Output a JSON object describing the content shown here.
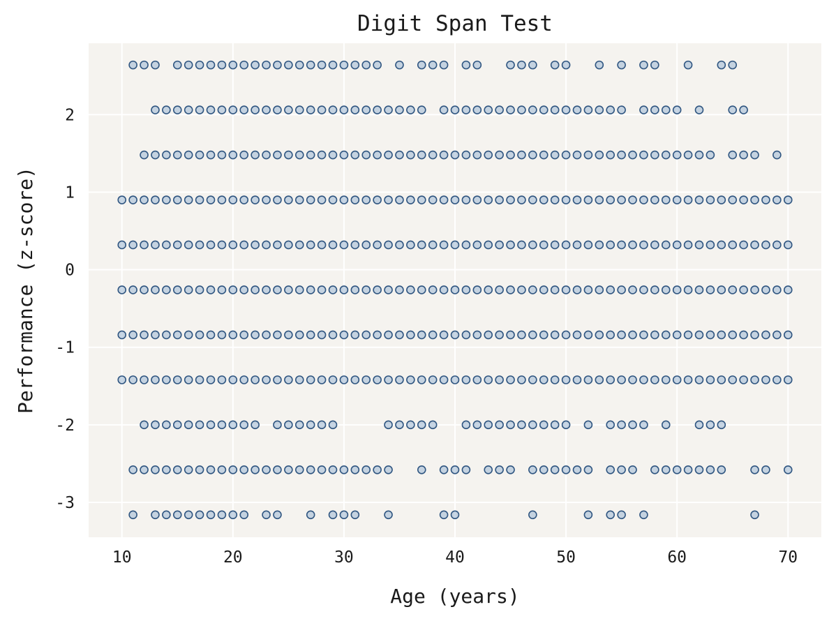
{
  "chart_data": {
    "type": "scatter",
    "title": "Digit Span Test",
    "xlabel": "Age (years)",
    "ylabel": "Performance (z-score)",
    "xlim": [
      7,
      73
    ],
    "ylim": [
      -3.45,
      2.92
    ],
    "xticks": [
      10,
      20,
      30,
      40,
      50,
      60,
      70
    ],
    "yticks": [
      -3,
      -2,
      -1,
      0,
      1,
      2
    ],
    "xtick_labels": [
      "10",
      "20",
      "30",
      "40",
      "50",
      "60",
      "70"
    ],
    "ytick_labels": [
      "-3",
      "-2",
      "-1",
      "0",
      "1",
      "2"
    ],
    "grid": true,
    "colors": {
      "background": "#f5f3ef",
      "grid": "#ffffff",
      "marker_fill": "#9ab7d3",
      "marker_edge": "#2f5580"
    },
    "series": [
      {
        "levels": [
          {
            "y": 2.64,
            "ages": [
              11,
              12,
              13,
              15,
              16,
              17,
              18,
              19,
              20,
              21,
              22,
              23,
              24,
              25,
              26,
              27,
              28,
              29,
              30,
              31,
              32,
              33,
              35,
              37,
              38,
              39,
              41,
              42,
              45,
              46,
              47,
              49,
              50,
              53,
              55,
              57,
              58,
              61,
              64,
              65
            ]
          },
          {
            "y": 2.06,
            "ages": [
              13,
              14,
              15,
              16,
              17,
              18,
              19,
              20,
              21,
              22,
              23,
              24,
              25,
              26,
              27,
              28,
              29,
              30,
              31,
              32,
              33,
              34,
              35,
              36,
              37,
              39,
              40,
              41,
              42,
              43,
              44,
              45,
              46,
              47,
              48,
              49,
              50,
              51,
              52,
              53,
              54,
              55,
              57,
              58,
              59,
              60,
              62,
              65,
              66
            ]
          },
          {
            "y": 1.48,
            "ages": [
              12,
              13,
              14,
              15,
              16,
              17,
              18,
              19,
              20,
              21,
              22,
              23,
              24,
              25,
              26,
              27,
              28,
              29,
              30,
              31,
              32,
              33,
              34,
              35,
              36,
              37,
              38,
              39,
              40,
              41,
              42,
              43,
              44,
              45,
              46,
              47,
              48,
              49,
              50,
              51,
              52,
              53,
              54,
              55,
              56,
              57,
              58,
              59,
              60,
              61,
              62,
              63,
              65,
              66,
              67,
              69
            ]
          },
          {
            "y": 0.9,
            "ages": [
              10,
              11,
              12,
              13,
              14,
              15,
              16,
              17,
              18,
              19,
              20,
              21,
              22,
              23,
              24,
              25,
              26,
              27,
              28,
              29,
              30,
              31,
              32,
              33,
              34,
              35,
              36,
              37,
              38,
              39,
              40,
              41,
              42,
              43,
              44,
              45,
              46,
              47,
              48,
              49,
              50,
              51,
              52,
              53,
              54,
              55,
              56,
              57,
              58,
              59,
              60,
              61,
              62,
              63,
              64,
              65,
              66,
              67,
              68,
              69,
              70
            ]
          },
          {
            "y": 0.32,
            "ages": [
              10,
              11,
              12,
              13,
              14,
              15,
              16,
              17,
              18,
              19,
              20,
              21,
              22,
              23,
              24,
              25,
              26,
              27,
              28,
              29,
              30,
              31,
              32,
              33,
              34,
              35,
              36,
              37,
              38,
              39,
              40,
              41,
              42,
              43,
              44,
              45,
              46,
              47,
              48,
              49,
              50,
              51,
              52,
              53,
              54,
              55,
              56,
              57,
              58,
              59,
              60,
              61,
              62,
              63,
              64,
              65,
              66,
              67,
              68,
              69,
              70
            ]
          },
          {
            "y": -0.26,
            "ages": [
              10,
              11,
              12,
              13,
              14,
              15,
              16,
              17,
              18,
              19,
              20,
              21,
              22,
              23,
              24,
              25,
              26,
              27,
              28,
              29,
              30,
              31,
              32,
              33,
              34,
              35,
              36,
              37,
              38,
              39,
              40,
              41,
              42,
              43,
              44,
              45,
              46,
              47,
              48,
              49,
              50,
              51,
              52,
              53,
              54,
              55,
              56,
              57,
              58,
              59,
              60,
              61,
              62,
              63,
              64,
              65,
              66,
              67,
              68,
              69,
              70
            ]
          },
          {
            "y": -0.84,
            "ages": [
              10,
              11,
              12,
              13,
              14,
              15,
              16,
              17,
              18,
              19,
              20,
              21,
              22,
              23,
              24,
              25,
              26,
              27,
              28,
              29,
              30,
              31,
              32,
              33,
              34,
              35,
              36,
              37,
              38,
              39,
              40,
              41,
              42,
              43,
              44,
              45,
              46,
              47,
              48,
              49,
              50,
              51,
              52,
              53,
              54,
              55,
              56,
              57,
              58,
              59,
              60,
              61,
              62,
              63,
              64,
              65,
              66,
              67,
              68,
              69,
              70
            ]
          },
          {
            "y": -1.42,
            "ages": [
              10,
              11,
              12,
              13,
              14,
              15,
              16,
              17,
              18,
              19,
              20,
              21,
              22,
              23,
              24,
              25,
              26,
              27,
              28,
              29,
              30,
              31,
              32,
              33,
              34,
              35,
              36,
              37,
              38,
              39,
              40,
              41,
              42,
              43,
              44,
              45,
              46,
              47,
              48,
              49,
              50,
              51,
              52,
              53,
              54,
              55,
              56,
              57,
              58,
              59,
              60,
              61,
              62,
              63,
              64,
              65,
              66,
              67,
              68,
              69,
              70
            ]
          },
          {
            "y": -2.0,
            "ages": [
              12,
              13,
              14,
              15,
              16,
              17,
              18,
              19,
              20,
              21,
              22,
              24,
              25,
              26,
              27,
              28,
              29,
              34,
              35,
              36,
              37,
              38,
              41,
              42,
              43,
              44,
              45,
              46,
              47,
              48,
              49,
              50,
              52,
              54,
              55,
              56,
              57,
              59,
              62,
              63,
              64
            ]
          },
          {
            "y": -2.58,
            "ages": [
              11,
              12,
              13,
              14,
              15,
              16,
              17,
              18,
              19,
              20,
              21,
              22,
              23,
              24,
              25,
              26,
              27,
              28,
              29,
              30,
              31,
              32,
              33,
              34,
              37,
              39,
              40,
              41,
              43,
              44,
              45,
              47,
              48,
              49,
              50,
              51,
              52,
              54,
              55,
              56,
              58,
              59,
              60,
              61,
              62,
              63,
              64,
              67,
              68,
              70
            ]
          },
          {
            "y": -3.16,
            "ages": [
              11,
              13,
              14,
              15,
              16,
              17,
              18,
              19,
              20,
              21,
              23,
              24,
              27,
              29,
              30,
              31,
              34,
              39,
              40,
              47,
              52,
              54,
              55,
              57,
              67
            ]
          }
        ]
      }
    ]
  }
}
